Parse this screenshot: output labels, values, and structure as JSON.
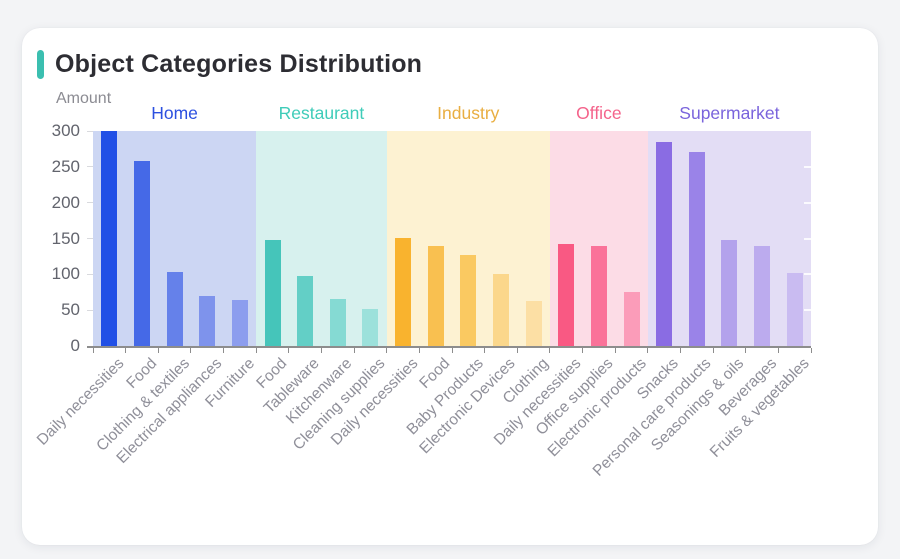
{
  "page": {
    "background_color": "#f3f4f6",
    "card_color": "#ffffff"
  },
  "header": {
    "title": "Object Categories Distribution",
    "accent_color": "#3bbfb0"
  },
  "chart_data": {
    "type": "bar",
    "title": "Object Categories Distribution",
    "xlabel": "",
    "ylabel": "Amount",
    "ylim": [
      0,
      300
    ],
    "yticks": [
      0,
      50,
      100,
      150,
      200,
      250,
      300
    ],
    "grid": false,
    "legend_position": "group-labels-top",
    "groups": [
      {
        "name": "Home",
        "label_color": "#2c50e0",
        "band_color": "#ccd6f3",
        "categories": [
          "Daily necessities",
          "Food",
          "Clothing & textiles",
          "Electrical appliances",
          "Furniture"
        ],
        "values": [
          300,
          258,
          103,
          70,
          64
        ],
        "bar_colors": [
          "#2150e6",
          "#4569e7",
          "#6581ea",
          "#7e93ec",
          "#8c9dee"
        ]
      },
      {
        "name": "Restaurant",
        "label_color": "#3fccb9",
        "band_color": "#d7f1ee",
        "categories": [
          "Food",
          "Tableware",
          "Kitchenware",
          "Cleaning supplies"
        ],
        "values": [
          148,
          98,
          65,
          51
        ],
        "bar_colors": [
          "#45c5ba",
          "#63cfc6",
          "#85dad3",
          "#9ce1db"
        ]
      },
      {
        "name": "Industry",
        "label_color": "#e9ae41",
        "band_color": "#fdf2d2",
        "categories": [
          "Daily necessities",
          "Food",
          "Baby Products",
          "Electronic Devices",
          "Clothing"
        ],
        "values": [
          151,
          139,
          127,
          100,
          63
        ],
        "bar_colors": [
          "#f9b32e",
          "#f9c050",
          "#fac961",
          "#fbd78b",
          "#fcdfa4"
        ]
      },
      {
        "name": "Office",
        "label_color": "#f4638b",
        "band_color": "#fcdce6",
        "categories": [
          "Daily necessities",
          "Office supplies",
          "Electronic products"
        ],
        "values": [
          142,
          139,
          75
        ],
        "bar_colors": [
          "#f95983",
          "#fa7299",
          "#fb9cb9"
        ]
      },
      {
        "name": "Supermarket",
        "label_color": "#7a64dc",
        "band_color": "#e3ddf5",
        "categories": [
          "Snacks",
          "Personal care products",
          "Seasonings & oils",
          "Beverages",
          "Fruits & vegetables"
        ],
        "values": [
          285,
          271,
          148,
          140,
          102
        ],
        "bar_colors": [
          "#8a6ce3",
          "#9a83e8",
          "#b3a2ec",
          "#bcabee",
          "#c9bbf1"
        ]
      }
    ]
  }
}
